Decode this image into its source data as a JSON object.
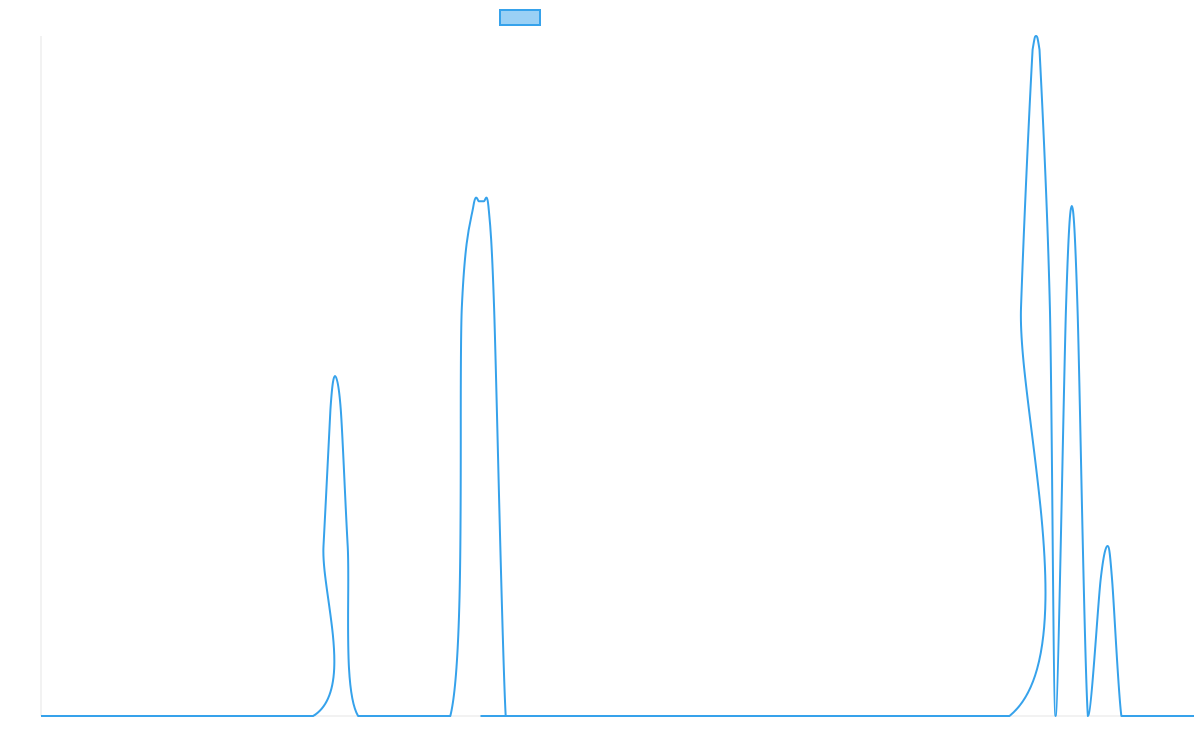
{
  "chart_data": {
    "type": "line",
    "title": "",
    "xlabel": "",
    "ylabel": "",
    "xlim": [
      0,
      100
    ],
    "ylim": [
      0,
      100
    ],
    "grid": false,
    "legend": "top-center",
    "series": [
      {
        "color": "#36a2eb",
        "fill": "#9ad0f5",
        "x": [
          0,
          23.6,
          24.5,
          25.1,
          25.5,
          26.0,
          26.6,
          27.5,
          35.5,
          36.5,
          37.5,
          38.0,
          38.4,
          38.8,
          39.3,
          40.3,
          41.3,
          84.0,
          85.0,
          86.0,
          86.3,
          86.6,
          87.5,
          88.0,
          88.9,
          89.4,
          89.9,
          90.8,
          91.9,
          92.5,
          92.9,
          93.7,
          94.6,
          100
        ],
        "y": [
          0,
          0,
          25,
          45,
          50,
          45,
          25,
          0,
          0,
          60,
          75,
          75.7,
          75.7,
          75,
          60,
          0,
          0,
          0,
          60,
          98,
          100,
          98,
          60,
          0,
          60,
          75,
          60,
          0,
          20,
          25,
          20,
          0,
          0,
          0
        ]
      }
    ]
  }
}
